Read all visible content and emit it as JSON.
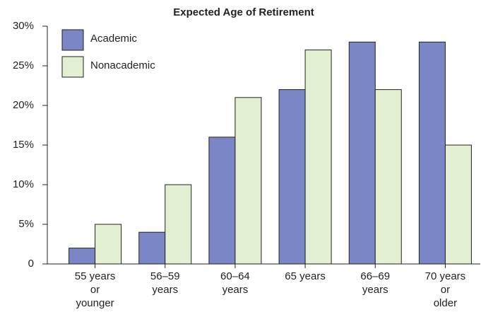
{
  "chart_data": {
    "type": "bar",
    "title": "Expected Age of Retirement",
    "categories": [
      "55 years\nor\nyounger",
      "56–59\nyears",
      "60–64\nyears",
      "65 years",
      "66–69\nyears",
      "70 years\nor\nolder"
    ],
    "series": [
      {
        "name": "Academic",
        "color": "#7b86c6",
        "values": [
          2,
          4,
          16,
          22,
          28,
          28
        ]
      },
      {
        "name": "Nonacademic",
        "color": "#e2efd0",
        "values": [
          5,
          10,
          21,
          27,
          22,
          15
        ]
      }
    ],
    "ylim": [
      0,
      30
    ],
    "yticks": [
      0,
      {
        "value": 5,
        "label": "5%"
      },
      {
        "value": 10,
        "label": "10%"
      },
      {
        "value": 15,
        "label": "15%"
      },
      {
        "value": 20,
        "label": "20%"
      },
      {
        "value": 25,
        "label": "25%"
      },
      {
        "value": 30,
        "label": "30%"
      }
    ],
    "legend": "upper left"
  }
}
